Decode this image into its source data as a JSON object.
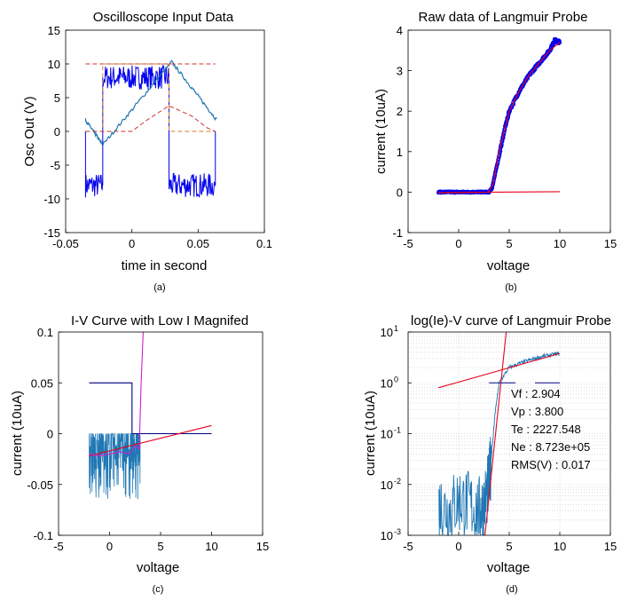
{
  "colors": {
    "dark_blue": "#0000ee",
    "light_blue": "#1f77b4",
    "red": "#e8001c",
    "red_dashed": "#c83232",
    "orange_dashed": "#d9773a",
    "magenta": "#d020d0",
    "navy": "#000080",
    "grid": "#c8c8c8"
  },
  "chart_data": [
    {
      "id": "a",
      "type": "line",
      "title": "Oscilloscope Input Data",
      "xlabel": "time in second",
      "ylabel": "Osc Out (V)",
      "caption": "(a)",
      "xlim": [
        -0.05,
        0.1
      ],
      "ylim": [
        -15,
        15
      ],
      "xticks": [
        -0.05,
        0,
        0.05,
        0.1
      ],
      "xtick_labels": [
        "-0.05",
        "0",
        "0.05",
        "0.1"
      ],
      "yticks": [
        -15,
        -10,
        -5,
        0,
        5,
        10,
        15
      ],
      "ytick_labels": [
        "-15",
        "-10",
        "-5",
        "0",
        "5",
        "10",
        "15"
      ],
      "grid": false,
      "series": [
        {
          "style": "noisy-square-wave",
          "color": "#0000ee",
          "x": [
            -0.035,
            -0.035,
            -0.022,
            -0.022,
            0.028,
            0.028,
            0.063,
            0.063
          ],
          "y": [
            0,
            -8,
            -8,
            8,
            8,
            -8,
            -8,
            0
          ]
        },
        {
          "style": "triangle-wave",
          "color": "#1f77b4",
          "x": [
            -0.035,
            -0.022,
            0.03,
            0.064
          ],
          "y": [
            1.7,
            -2,
            10.3,
            1.7
          ]
        },
        {
          "style": "dashed",
          "color": "#c83232",
          "x": [
            -0.035,
            -0.022,
            -0.02,
            0.028,
            0.03,
            0.063
          ],
          "y": [
            10,
            10,
            10,
            10,
            10,
            10
          ]
        },
        {
          "style": "dashed",
          "color": "#d9773a",
          "x": [
            -0.035,
            -0.022,
            -0.022,
            0.028,
            0.028,
            0.063
          ],
          "y": [
            0,
            0,
            10,
            10,
            0,
            0
          ]
        },
        {
          "style": "dashed",
          "color": "#c83232",
          "x": [
            -0.035,
            0,
            0.01,
            0.028,
            0.045,
            0.057,
            0.063
          ],
          "y": [
            0,
            0,
            1.5,
            3.8,
            2.3,
            0.5,
            0
          ]
        }
      ]
    },
    {
      "id": "b",
      "type": "line",
      "title": "Raw data of Langmuir Probe",
      "xlabel": "voltage",
      "ylabel": "current (10uA)",
      "caption": "(b)",
      "xlim": [
        -5,
        15
      ],
      "ylim": [
        -1,
        4
      ],
      "xticks": [
        -5,
        0,
        5,
        10,
        15
      ],
      "xtick_labels": [
        "-5",
        "0",
        "5",
        "10",
        "15"
      ],
      "yticks": [
        -1,
        0,
        1,
        2,
        3,
        4
      ],
      "ytick_labels": [
        "-1",
        "0",
        "1",
        "2",
        "3",
        "4"
      ],
      "grid": false,
      "series": [
        {
          "style": "markers",
          "color": "#0000ee",
          "x": [
            -2,
            -1,
            0,
            1,
            2,
            3,
            3.3,
            4,
            4.5,
            5,
            6,
            7,
            8,
            9,
            9.5,
            10
          ],
          "y": [
            0,
            0,
            0,
            0,
            0,
            0,
            0.1,
            0.9,
            1.5,
            2,
            2.5,
            2.9,
            3.2,
            3.5,
            3.75,
            3.7
          ]
        },
        {
          "style": "line",
          "color": "#e8001c",
          "x": [
            -2,
            1,
            2.9,
            3.4,
            4,
            5,
            6,
            7,
            8,
            9,
            10
          ],
          "y": [
            -0.02,
            -0.01,
            0,
            0.2,
            1,
            2,
            2.5,
            2.9,
            3.2,
            3.5,
            3.7
          ]
        },
        {
          "style": "line",
          "color": "#e8001c",
          "x": [
            -2,
            10
          ],
          "y": [
            -0.01,
            0.01
          ]
        }
      ]
    },
    {
      "id": "c",
      "type": "line",
      "title": "I-V Curve with Low I Magnifed",
      "xlabel": "voltage",
      "ylabel": "current (10uA)",
      "caption": "(c)",
      "xlim": [
        -5,
        15
      ],
      "ylim": [
        -0.1,
        0.1
      ],
      "xticks": [
        -5,
        0,
        5,
        10,
        15
      ],
      "xtick_labels": [
        "-5",
        "0",
        "5",
        "10",
        "15"
      ],
      "yticks": [
        -0.1,
        -0.05,
        0,
        0.05,
        0.1
      ],
      "ytick_labels": [
        "-0.1",
        "-0.05",
        "0",
        "0.05",
        "0.1"
      ],
      "grid": false,
      "series": [
        {
          "style": "noisy-band",
          "color": "#1f77b4",
          "x": [
            -2,
            3
          ],
          "y": [
            -0.065,
            0
          ]
        },
        {
          "style": "step",
          "color": "#000080",
          "x": [
            -2,
            2.2,
            2.2,
            3.2,
            3.2,
            10
          ],
          "y": [
            0.05,
            0.05,
            0,
            0,
            0,
            0
          ]
        },
        {
          "style": "line",
          "color": "#e8001c",
          "x": [
            -2,
            10
          ],
          "y": [
            -0.022,
            0.008
          ]
        },
        {
          "style": "line",
          "color": "#d020d0",
          "x": [
            -2,
            -1,
            0,
            1,
            2,
            2.5,
            2.9,
            3.1,
            3.3
          ],
          "y": [
            -0.02,
            -0.022,
            -0.02,
            -0.018,
            -0.02,
            -0.012,
            -0.015,
            0.05,
            0.1
          ]
        }
      ]
    },
    {
      "id": "d",
      "type": "line",
      "title": "log(Ie)-V curve of Langmuir Probe",
      "xlabel": "voltage",
      "ylabel": "current (10uA)",
      "caption": "(d)",
      "xlim": [
        -5,
        15
      ],
      "ylim": [
        0.001,
        10
      ],
      "yscale": "log",
      "xticks": [
        -5,
        0,
        5,
        10,
        15
      ],
      "xtick_labels": [
        "-5",
        "0",
        "5",
        "10",
        "15"
      ],
      "yticks": [
        0.001,
        0.01,
        0.1,
        1,
        10
      ],
      "ytick_labels": [
        "10^-3",
        "10^-2",
        "10^-1",
        "10^0",
        "10^1"
      ],
      "grid": true,
      "annotations": [
        "Vf : 2.904",
        "Vp : 3.800",
        "Te : 2227.548",
        "Ne : 8.723e+05",
        "RMS(V) : 0.017"
      ],
      "series": [
        {
          "style": "noisy-log",
          "color": "#1f77b4",
          "x": [
            -2,
            -1,
            0,
            1,
            2,
            2.5,
            3,
            3.3,
            3.6,
            4,
            5,
            6,
            7,
            8,
            9,
            10
          ],
          "y": [
            0.004,
            0.003,
            0.005,
            0.004,
            0.003,
            0.004,
            0.01,
            0.05,
            0.25,
            1,
            2,
            2.4,
            2.8,
            3.2,
            3.5,
            3.8
          ]
        },
        {
          "style": "line",
          "color": "#e8001c",
          "x": [
            2.6,
            4.7
          ],
          "y": [
            0.001,
            10
          ]
        },
        {
          "style": "line",
          "color": "#e8001c",
          "x": [
            -2,
            10
          ],
          "y": [
            0.8,
            3.8
          ]
        },
        {
          "style": "dash-segment",
          "color": "#000080",
          "x": [
            3,
            10
          ],
          "y": [
            1,
            1
          ]
        }
      ]
    }
  ]
}
